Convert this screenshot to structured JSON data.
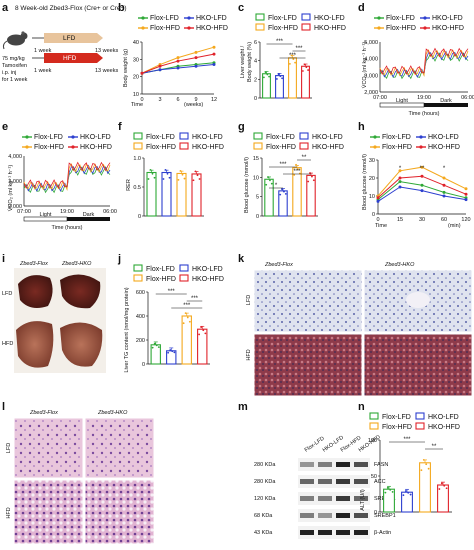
{
  "colors": {
    "flox_lfd": "#2ea836",
    "hko_lfd": "#2d3fcf",
    "flox_hfd": "#f4a81d",
    "hko_hfd": "#e0222a"
  },
  "a": {
    "label": "a",
    "title": "8 Week-old Zbed3-Flox (Cre+ or Cre−)",
    "lfd": "LFD",
    "hfd": "HFD",
    "week1": "1 week",
    "week13": "13 weeks",
    "dose1": "75 mg/kg",
    "dose2": "Tamoxifen",
    "dose3": "i.p. inj",
    "dose4": "for 1 week"
  },
  "b": {
    "label": "b",
    "ylabel": "Body weight (g)",
    "xlabel": "Time",
    "xunit": "(weeks)",
    "xticks": [
      "0",
      "3",
      "6",
      "9",
      "12"
    ],
    "yticks": [
      "10",
      "20",
      "30",
      "40"
    ],
    "legend": [
      "Flox-LFD",
      "HKO-LFD",
      "Flox-HFD",
      "HKO-HFD"
    ]
  },
  "c": {
    "label": "c",
    "ylabel1": "Liver weight /",
    "ylabel2": "Body weight (%)",
    "yticks": [
      "0",
      "2",
      "4",
      "6"
    ],
    "legend": [
      "Flox-LFD",
      "HKO-LFD",
      "Flox-HFD",
      "HKO-HFD"
    ],
    "stars": [
      "***",
      "***",
      "***"
    ]
  },
  "d": {
    "label": "d",
    "ylabel": "V̇CO₂ (ml kg⁻¹ h⁻¹)",
    "yticks": [
      "2,000",
      "3,000",
      "4,000",
      "5,000"
    ],
    "xticks": [
      "07:00",
      "19:00",
      "06:00"
    ],
    "xlabel": "Time (hours)",
    "light": "Light",
    "dark": "Dark",
    "legend": [
      "Flox-LFD",
      "HKO-LFD",
      "Flox-HFD",
      "HKO-HFD"
    ]
  },
  "e": {
    "label": "e",
    "ylabel": "V̇CO₂ (ml kg⁻¹ h⁻¹)",
    "yticks": [
      "2,000",
      "3,000",
      "4,000"
    ],
    "xticks": [
      "07:00",
      "19:00",
      "06:00"
    ],
    "xlabel": "Time (hours)",
    "light": "Light",
    "dark": "Dark",
    "legend": [
      "Flox-LFD",
      "HKO-LFD",
      "Flox-HFD",
      "HKO-HFD"
    ]
  },
  "f": {
    "label": "f",
    "ylabel": "RER",
    "yticks": [
      "0",
      "0.5",
      "1.0"
    ],
    "legend": [
      "Flox-LFD",
      "HKO-LFD",
      "Flox-HFD",
      "HKO-HFD"
    ]
  },
  "g": {
    "label": "g",
    "ylabel": "Blood glucose (mmol/l)",
    "yticks": [
      "0",
      "5",
      "10",
      "15"
    ],
    "legend": [
      "Flox-LFD",
      "HKO-LFD",
      "Flox-HFD",
      "HKO-HFD"
    ],
    "stars": [
      "*",
      "**",
      "***",
      "***"
    ]
  },
  "h": {
    "label": "h",
    "ylabel": "Blood glucose (mmol/l)",
    "yticks": [
      "0",
      "10",
      "20",
      "30"
    ],
    "xticks": [
      "0",
      "15",
      "30",
      "60",
      "120"
    ],
    "xlabel": "Time",
    "xunit": "(min)",
    "legend": [
      "Flox-LFD",
      "HKO-LFD",
      "Flox-HFD",
      "HKO-HFD"
    ],
    "stars": [
      "*",
      "**",
      "*"
    ]
  },
  "i": {
    "label": "i",
    "col1": "Zbed3-Flox",
    "col2": "Zbed3-HKO",
    "row1": "LFD",
    "row2": "HFD"
  },
  "j": {
    "label": "j",
    "ylabel": "Liver TG content (nmol/mg protein)",
    "yticks": [
      "0",
      "200",
      "400",
      "600"
    ],
    "legend": [
      "Flox-LFD",
      "HKO-LFD",
      "Flox-HFD",
      "HKO-HFD"
    ],
    "stars": [
      "***",
      "***",
      "***"
    ]
  },
  "k": {
    "label": "k",
    "col1": "Zbed3-Flox",
    "col2": "Zbed3-HKO",
    "row1": "LFD",
    "row2": "HFD"
  },
  "l": {
    "label": "l",
    "col1": "Zbed3-Flox",
    "col2": "Zbed3-HKO",
    "row1": "LFD",
    "row2": "HFD"
  },
  "m": {
    "label": "m",
    "lanes": [
      "Flox-LFD",
      "HKO-LFD",
      "Flox-HFD",
      "HKO-HFD"
    ],
    "bands": [
      {
        "kda": "280 KDa",
        "name": "FASN"
      },
      {
        "kda": "280 KDa",
        "name": "ACC"
      },
      {
        "kda": "120 KDa",
        "name": "SREBP1"
      },
      {
        "kda": "68 KDa",
        "name": "SREBP1"
      },
      {
        "kda": "43 KDa",
        "name": "β-Actin"
      }
    ]
  },
  "n": {
    "label": "n",
    "ylabel": "ALT (U/l)",
    "yticks": [
      "0",
      "50",
      "100"
    ],
    "legend": [
      "Flox-LFD",
      "HKO-LFD",
      "Flox-HFD",
      "HKO-HFD"
    ],
    "stars": [
      "***",
      "**"
    ]
  },
  "chart_data": [
    {
      "panel": "c",
      "type": "bar",
      "categories": [
        "Flox-LFD",
        "HKO-LFD",
        "Flox-HFD",
        "HKO-HFD"
      ],
      "values": [
        2.6,
        2.4,
        4.3,
        3.4
      ],
      "ylim": [
        0,
        6
      ]
    },
    {
      "panel": "f",
      "type": "bar",
      "categories": [
        "Flox-LFD",
        "HKO-LFD",
        "Flox-HFD",
        "HKO-HFD"
      ],
      "values": [
        0.9,
        0.9,
        0.88,
        0.87
      ],
      "ylim": [
        0,
        1.2
      ]
    },
    {
      "panel": "g",
      "type": "bar",
      "categories": [
        "Flox-LFD",
        "HKO-LFD",
        "Flox-HFD",
        "HKO-HFD"
      ],
      "values": [
        9.5,
        6.5,
        12.5,
        10.5
      ],
      "ylim": [
        0,
        15
      ]
    },
    {
      "panel": "j",
      "type": "bar",
      "categories": [
        "Flox-LFD",
        "HKO-LFD",
        "Flox-HFD",
        "HKO-HFD"
      ],
      "values": [
        160,
        110,
        400,
        290
      ],
      "ylim": [
        0,
        600
      ]
    },
    {
      "panel": "n",
      "type": "bar",
      "categories": [
        "Flox-LFD",
        "HKO-LFD",
        "Flox-HFD",
        "HKO-HFD"
      ],
      "values": [
        38,
        33,
        82,
        45
      ],
      "ylim": [
        0,
        120
      ]
    },
    {
      "panel": "b",
      "type": "line",
      "x": [
        0,
        3,
        6,
        9,
        12
      ],
      "ylim": [
        10,
        40
      ],
      "series": [
        {
          "name": "Flox-LFD",
          "values": [
            22,
            24,
            26,
            27,
            28
          ]
        },
        {
          "name": "HKO-LFD",
          "values": [
            22,
            24,
            25,
            26,
            27
          ]
        },
        {
          "name": "Flox-HFD",
          "values": [
            22,
            27,
            31,
            34,
            37
          ]
        },
        {
          "name": "HKO-HFD",
          "values": [
            22,
            26,
            29,
            31,
            33
          ]
        }
      ]
    },
    {
      "panel": "h",
      "type": "line",
      "x": [
        0,
        15,
        30,
        60,
        120
      ],
      "ylim": [
        0,
        30
      ],
      "series": [
        {
          "name": "Flox-LFD",
          "values": [
            8,
            18,
            16,
            12,
            9
          ]
        },
        {
          "name": "HKO-LFD",
          "values": [
            7,
            15,
            13,
            10,
            8
          ]
        },
        {
          "name": "Flox-HFD",
          "values": [
            10,
            24,
            26,
            20,
            14
          ]
        },
        {
          "name": "HKO-HFD",
          "values": [
            9,
            20,
            21,
            16,
            11
          ]
        }
      ]
    }
  ]
}
